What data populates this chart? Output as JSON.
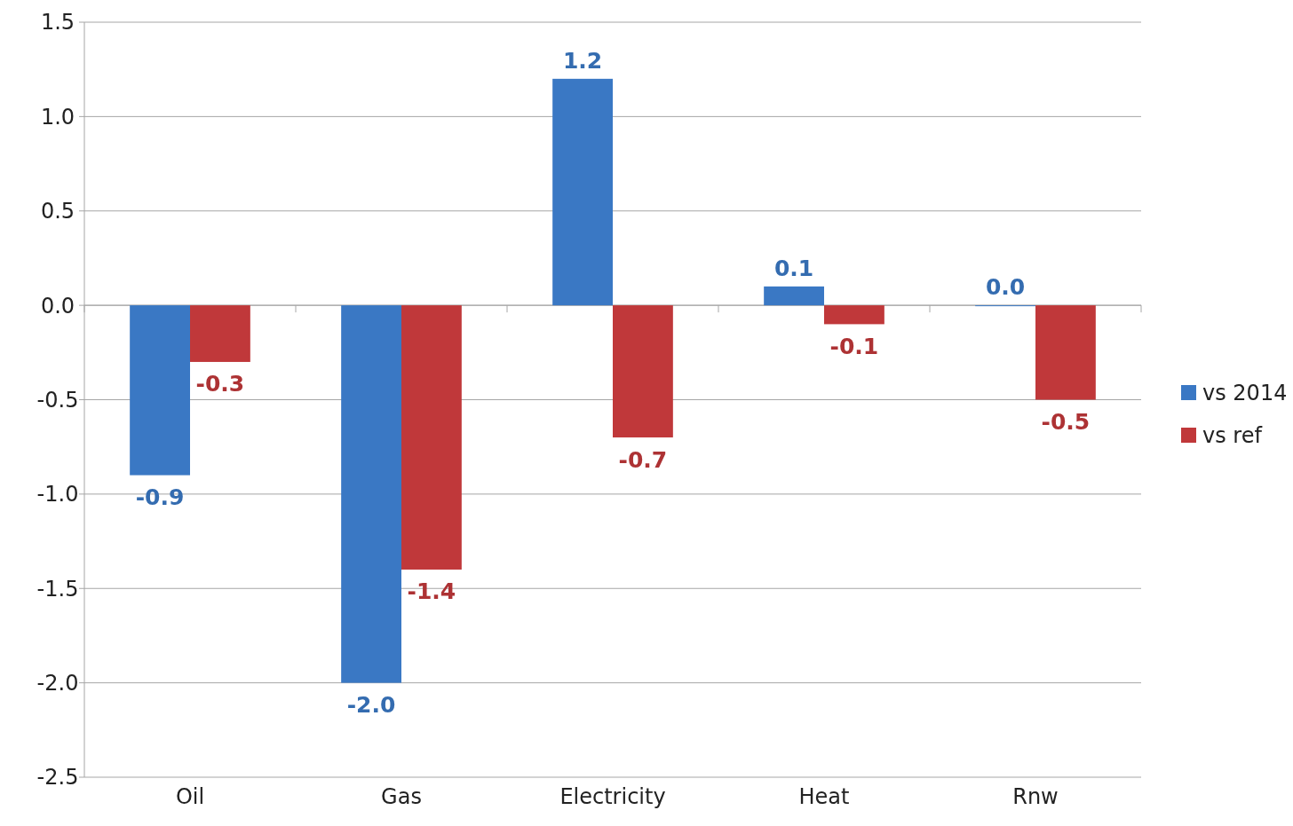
{
  "chart_data": {
    "type": "bar",
    "categories": [
      "Oil",
      "Gas",
      "Electricity",
      "Heat",
      "Rnw"
    ],
    "series": [
      {
        "name": "vs 2014",
        "color": "#3a78c4",
        "values": [
          -0.9,
          -2.0,
          1.2,
          0.1,
          0.0
        ],
        "value_labels": [
          "-0.9",
          "-2.0",
          "1.2",
          "0.1",
          "0.0"
        ]
      },
      {
        "name": "vs ref",
        "color": "#c0383a",
        "values": [
          -0.3,
          -1.4,
          -0.7,
          -0.1,
          -0.5
        ],
        "value_labels": [
          "-0.3",
          "-1.4",
          "-0.7",
          "-0.1",
          "-0.5"
        ]
      }
    ],
    "ylim": [
      -2.5,
      1.5
    ],
    "yticks": [
      {
        "value": -2.5,
        "label": "-2.5"
      },
      {
        "value": -2,
        "label": "-2.0"
      },
      {
        "value": -1.5,
        "label": "-1.5"
      },
      {
        "value": -1,
        "label": "-1.0"
      },
      {
        "value": -0.5,
        "label": "-0.5"
      },
      {
        "value": 0,
        "label": "0.0"
      },
      {
        "value": 0.5,
        "label": "0.5"
      },
      {
        "value": 1,
        "label": "1.0"
      },
      {
        "value": 1.5,
        "label": "1.5"
      }
    ],
    "grid": "y",
    "legend": "right"
  }
}
